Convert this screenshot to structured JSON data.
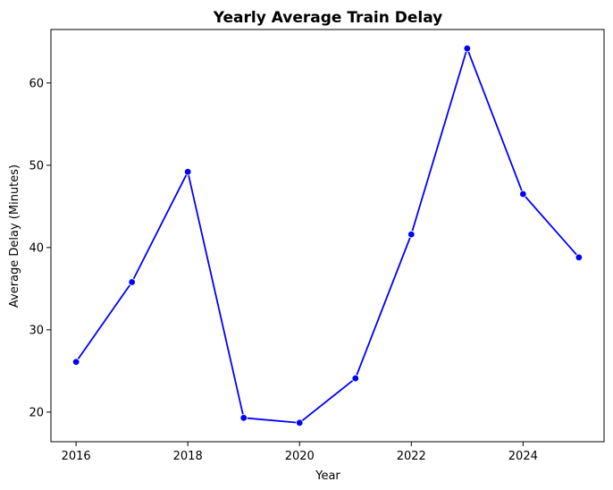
{
  "chart_data": {
    "type": "line",
    "title": "Yearly Average Train Delay",
    "xlabel": "Year",
    "ylabel": "Average Delay (Minutes)",
    "x": [
      2016,
      2017,
      2018,
      2019,
      2020,
      2021,
      2022,
      2023,
      2024,
      2025
    ],
    "series": [
      {
        "values": [
          26.1,
          35.8,
          49.2,
          19.3,
          18.7,
          24.1,
          41.6,
          64.2,
          46.5,
          38.8
        ],
        "color": "#0000ff"
      }
    ],
    "xlim": [
      2015.55,
      2025.45
    ],
    "ylim": [
      16.4,
      66.5
    ],
    "xticks": [
      2016,
      2018,
      2020,
      2022,
      2024
    ],
    "yticks": [
      20,
      30,
      40,
      50,
      60
    ],
    "grid": false,
    "legend": "none"
  }
}
